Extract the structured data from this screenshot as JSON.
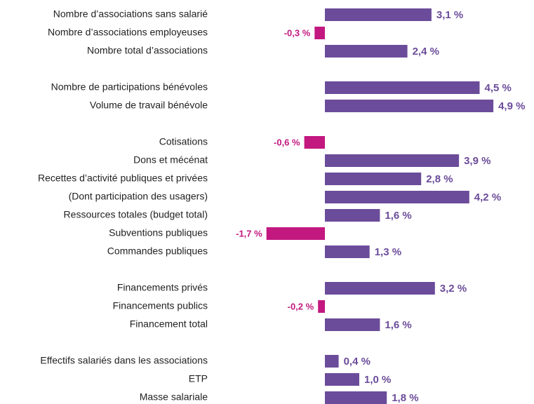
{
  "chart_data": {
    "type": "hbar",
    "categories": [
      "Nombre d’associations sans salarié",
      "Nombre d’associations employeuses",
      "Nombre total d’associations",
      null,
      "Nombre de participations bénévoles",
      "Volume de travail bénévole",
      null,
      "Cotisations",
      "Dons et mécénat",
      "Recettes d’activité publiques et privées",
      "(Dont participation des usagers)",
      "Ressources totales (budget total)",
      "Subventions publiques",
      "Commandes publiques",
      null,
      "Financements privés",
      "Financements publics",
      "Financement total",
      null,
      "Effectifs salariés dans les associations",
      "ETP",
      "Masse salariale"
    ],
    "values": [
      3.1,
      -0.3,
      2.4,
      null,
      4.5,
      4.9,
      null,
      -0.6,
      3.9,
      2.8,
      4.2,
      1.6,
      -1.7,
      1.3,
      null,
      3.2,
      -0.2,
      1.6,
      null,
      0.4,
      1.0,
      1.8
    ],
    "value_labels": [
      "3,1 %",
      "-0,3 %",
      "2,4 %",
      null,
      "4,5 %",
      "4,9 %",
      null,
      "-0,6 %",
      "3,9 %",
      "2,8 %",
      "4,2 %",
      "1,6 %",
      "-1,7 %",
      "1,3 %",
      null,
      "3,2 %",
      "-0,2 %",
      "1,6 %",
      null,
      "0,4 %",
      "1,0 %",
      "1,8 %"
    ],
    "colors": {
      "positive": "#6b4c9a",
      "negative": "#c2187f"
    }
  }
}
